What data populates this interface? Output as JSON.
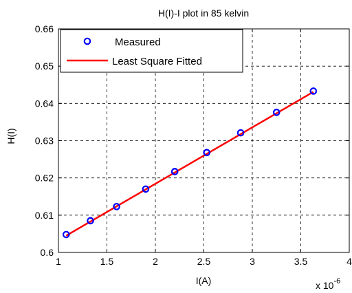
{
  "chart_data": {
    "type": "scatter",
    "title": "H(I)-I plot in 85 kelvin",
    "xlabel": "I(A)",
    "ylabel": "H(I)",
    "x_multiplier_label": "x 10",
    "x_multiplier_exponent": "-6",
    "xlim": [
      1,
      4
    ],
    "ylim": [
      0.6,
      0.66
    ],
    "xticks": [
      1,
      1.5,
      2,
      2.5,
      3,
      3.5,
      4
    ],
    "xtick_labels": [
      "1",
      "1.5",
      "2",
      "2.5",
      "3",
      "3.5",
      "4"
    ],
    "yticks": [
      0.6,
      0.61,
      0.62,
      0.63,
      0.64,
      0.65,
      0.66
    ],
    "ytick_labels": [
      "0.6",
      "0.61",
      "0.62",
      "0.63",
      "0.64",
      "0.65",
      "0.66"
    ],
    "grid": true,
    "legend_position": "top-left",
    "series": [
      {
        "name": "Measured",
        "style": "markers",
        "marker": "circle",
        "color": "#0000ff",
        "x": [
          1.08,
          1.33,
          1.6,
          1.9,
          2.2,
          2.53,
          2.88,
          3.25,
          3.63
        ],
        "y": [
          0.6048,
          0.6085,
          0.6123,
          0.617,
          0.6217,
          0.6268,
          0.6321,
          0.6376,
          0.6433
        ]
      },
      {
        "name": "Least Square Fitted",
        "style": "line",
        "color": "#ff0000",
        "x": [
          1.08,
          3.63
        ],
        "y": [
          0.6045,
          0.6431
        ]
      }
    ]
  }
}
